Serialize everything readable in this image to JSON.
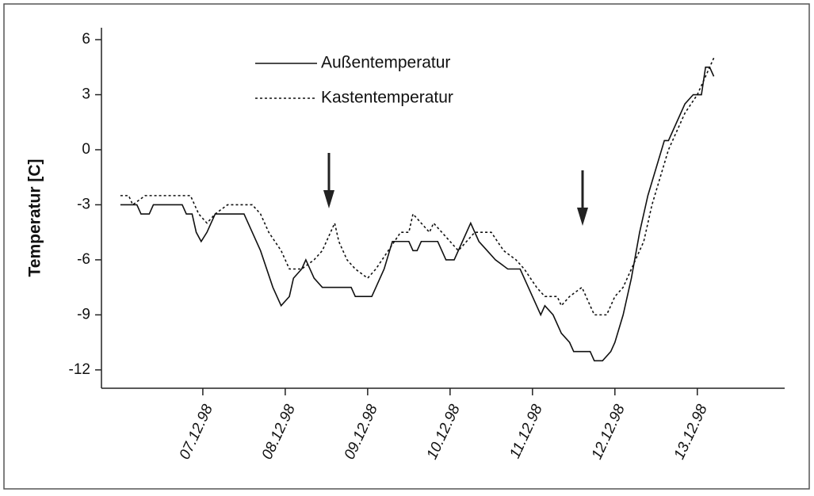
{
  "chart_data": {
    "type": "line",
    "ylabel": "Temperatur [C]",
    "xlim": [
      -0.23,
      8.06
    ],
    "ylim": [
      -13,
      6.65
    ],
    "xticks": [
      {
        "value": 1,
        "label": "07.12.98"
      },
      {
        "value": 2,
        "label": "08.12.98"
      },
      {
        "value": 3,
        "label": "09.12.98"
      },
      {
        "value": 4,
        "label": "10.12.98"
      },
      {
        "value": 5,
        "label": "11.12.98"
      },
      {
        "value": 6,
        "label": "12.12.98"
      },
      {
        "value": 7,
        "label": "13.12.98"
      }
    ],
    "yticks": [
      -12,
      -9,
      -6,
      -3,
      0,
      3,
      6
    ],
    "legend": "upper left",
    "series": [
      {
        "name": "Außentemperatur",
        "color": "#111111",
        "line_style": "solid",
        "x": [
          0,
          0.2,
          0.25,
          0.35,
          0.4,
          0.75,
          0.8,
          0.87,
          0.92,
          0.98,
          1.05,
          1.1,
          1.15,
          1.5,
          1.6,
          1.7,
          1.85,
          1.95,
          2.05,
          2.1,
          2.2,
          2.25,
          2.35,
          2.45,
          2.8,
          2.85,
          3.05,
          3.1,
          3.2,
          3.3,
          3.5,
          3.55,
          3.6,
          3.65,
          3.85,
          3.9,
          3.95,
          4.05,
          4.15,
          4.25,
          4.35,
          4.45,
          4.55,
          4.7,
          4.85,
          4.95,
          5.05,
          5.1,
          5.15,
          5.25,
          5.35,
          5.45,
          5.5,
          5.7,
          5.75,
          5.85,
          5.95,
          6.0,
          6.1,
          6.2,
          6.3,
          6.4,
          6.5,
          6.6,
          6.65,
          6.75,
          6.85,
          6.95,
          7.05,
          7.1,
          7.15,
          7.2
        ],
        "values": [
          -3,
          -3,
          -3.5,
          -3.5,
          -3,
          -3,
          -3.5,
          -3.5,
          -4.5,
          -5,
          -4.5,
          -4,
          -3.5,
          -3.5,
          -4.5,
          -5.5,
          -7.5,
          -8.5,
          -8,
          -7,
          -6.5,
          -6,
          -7,
          -7.5,
          -7.5,
          -8,
          -8,
          -7.5,
          -6.5,
          -5,
          -5,
          -5.5,
          -5.5,
          -5,
          -5,
          -5.5,
          -6,
          -6,
          -5,
          -4,
          -5,
          -5.5,
          -6,
          -6.5,
          -6.5,
          -7.5,
          -8.5,
          -9,
          -8.5,
          -9,
          -10,
          -10.5,
          -11,
          -11,
          -11.5,
          -11.5,
          -11,
          -10.5,
          -9,
          -7,
          -4.5,
          -2.5,
          -1,
          0.5,
          0.5,
          1.5,
          2.5,
          3,
          3,
          4.5,
          4.5,
          4
        ]
      },
      {
        "name": "Kastentemperatur",
        "color": "#111111",
        "line_style": "dotted",
        "x": [
          0,
          0.1,
          0.15,
          0.3,
          0.85,
          0.95,
          1.05,
          1.15,
          1.3,
          1.6,
          1.7,
          1.8,
          1.95,
          2.05,
          2.2,
          2.35,
          2.45,
          2.55,
          2.6,
          2.65,
          2.75,
          2.85,
          3.0,
          3.1,
          3.25,
          3.4,
          3.5,
          3.55,
          3.65,
          3.75,
          3.8,
          3.9,
          4.0,
          4.1,
          4.2,
          4.3,
          4.5,
          4.65,
          4.8,
          4.9,
          5.05,
          5.15,
          5.3,
          5.35,
          5.45,
          5.6,
          5.7,
          5.75,
          5.9,
          6.0,
          6.1,
          6.2,
          6.35,
          6.45,
          6.55,
          6.65,
          6.75,
          6.85,
          7.0,
          7.1,
          7.2
        ],
        "values": [
          -2.5,
          -2.5,
          -3,
          -2.5,
          -2.5,
          -3.5,
          -4,
          -3.5,
          -3,
          -3,
          -3.5,
          -4.5,
          -5.5,
          -6.5,
          -6.5,
          -6,
          -5.5,
          -4.5,
          -4,
          -5,
          -6,
          -6.5,
          -7,
          -6.5,
          -5.5,
          -4.5,
          -4.5,
          -3.5,
          -4,
          -4.5,
          -4,
          -4.5,
          -5,
          -5.5,
          -5,
          -4.5,
          -4.5,
          -5.5,
          -6,
          -6.5,
          -7.5,
          -8,
          -8,
          -8.5,
          -8,
          -7.5,
          -8.5,
          -9,
          -9,
          -8,
          -7.5,
          -6.5,
          -5,
          -3,
          -1.5,
          0,
          1,
          2,
          3,
          4,
          5
        ]
      }
    ]
  }
}
